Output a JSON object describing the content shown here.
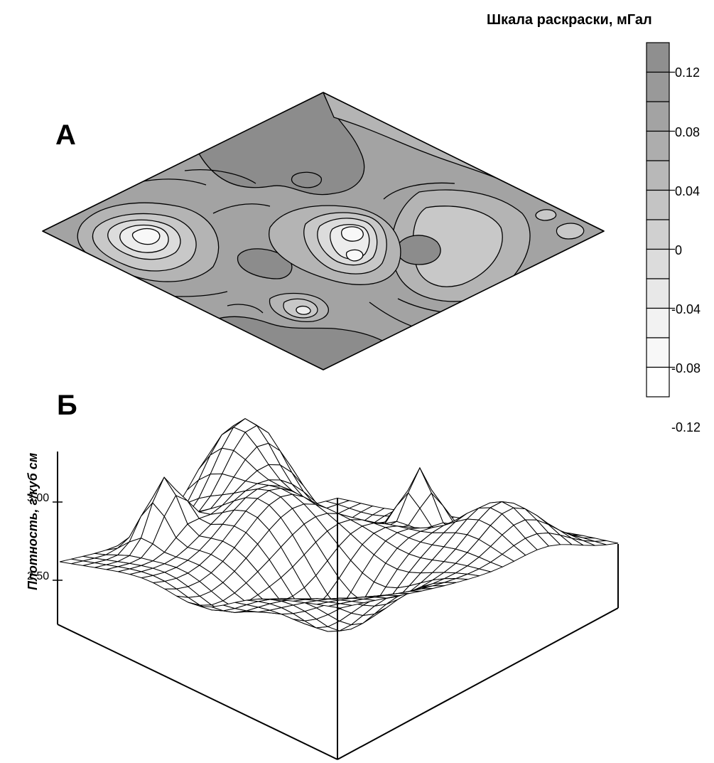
{
  "scale": {
    "title": "Шкала  раскраски, мГал",
    "ticks": [
      "0.12",
      "0.08",
      "0.04",
      "0",
      "-0.04",
      "-0.08",
      "-0.12"
    ],
    "colors": [
      "#8f8f8f",
      "#999999",
      "#a3a3a3",
      "#adadad",
      "#b8b8b8",
      "#c4c4c4",
      "#d0d0d0",
      "#dcdcdc",
      "#e8e8e8",
      "#f2f2f2",
      "#f8f8f8",
      "#ffffff"
    ]
  },
  "panel_a": {
    "label": "А",
    "fill_colors": {
      "base": "#a3a3a3",
      "dark": "#8c8c8c",
      "light1": "#b4b4b4",
      "light2": "#c8c8c8",
      "light3": "#dcdcdc",
      "light4": "#ececec",
      "light5": "#f8f8f8"
    }
  },
  "panel_b": {
    "label": "Б",
    "axis_label": "Плотность, г/куб см",
    "ticks": [
      "3.00",
      "2.50"
    ]
  }
}
